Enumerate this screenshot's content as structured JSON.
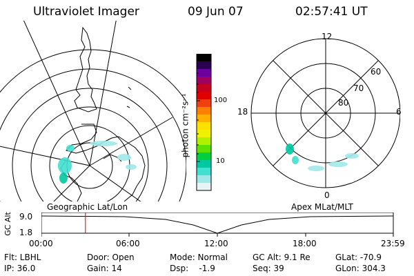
{
  "header": {
    "title": "Ultraviolet Imager",
    "date": "09 Jun 07",
    "time": "02:57:41 UT"
  },
  "colorbar": {
    "unit": "photon cm⁻²s⁻¹",
    "tick_labels": [
      "100",
      "10"
    ],
    "colors": [
      "#000000",
      "#2a0050",
      "#6a00a0",
      "#a00060",
      "#c80020",
      "#e00000",
      "#f04010",
      "#ff8000",
      "#ffb000",
      "#ffe000",
      "#f0f000",
      "#b0f000",
      "#60e000",
      "#00d040",
      "#00c8a0",
      "#40e0d0",
      "#a0e8e8",
      "#e8f4f4"
    ]
  },
  "left_map": {
    "label": "Geographic Lat/Lon"
  },
  "right_map": {
    "label": "Apex MLat/MLT",
    "mlt_labels": [
      "12",
      "18",
      "6",
      "0"
    ],
    "mlat_labels": [
      "60",
      "70",
      "80"
    ]
  },
  "timeline": {
    "axis_label": "GC Alt",
    "y_ticks": [
      "9.0",
      "1.8"
    ],
    "x_ticks": [
      "00:00",
      "06:00",
      "12:00",
      "18:00",
      "23:59"
    ],
    "current_time_fraction": 0.125
  },
  "info": {
    "filter": "Flt: LBHL",
    "ip": "IP: 36.0",
    "door": "Door: Open",
    "gain": "Gain: 14",
    "mode": "Mode: Normal",
    "dsp": "Dsp:    -1.9",
    "gcalt": "GC Alt: 9.1 Re",
    "seq": "Seq: 39",
    "glat": "GLat: -70.9",
    "glon": "GLon: 304.3"
  }
}
